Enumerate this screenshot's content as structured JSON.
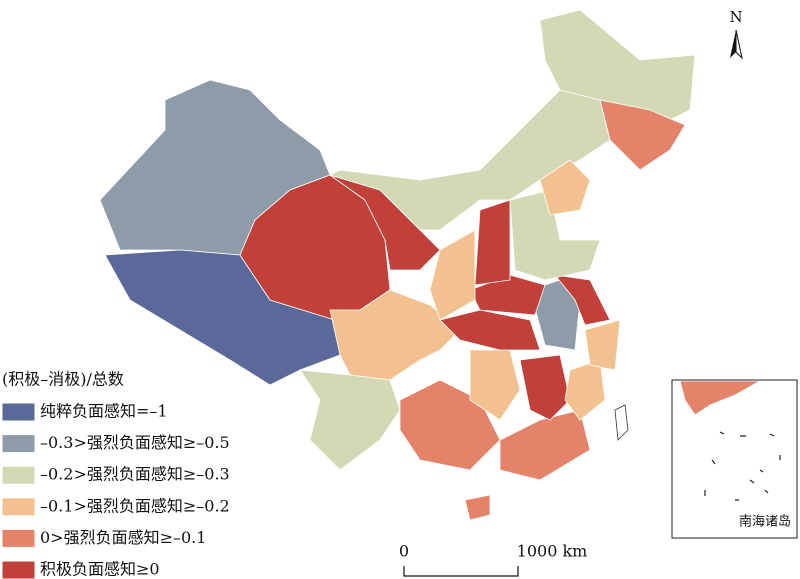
{
  "legend": {
    "title": "(积极–消极)/总数",
    "items": [
      {
        "label": "纯粹负面感知=–1",
        "color": "#5a6999"
      },
      {
        "label": "–0.3>强烈负面感知≥–0.5",
        "color": "#8e9ba8"
      },
      {
        "label": "–0.2>强烈负面感知≥–0.3",
        "color": "#d5d8b5"
      },
      {
        "label": "–0.1>强烈负面感知≥–0.2",
        "color": "#f2c18f"
      },
      {
        "label": "0>强烈负面感知≥–0.1",
        "color": "#e5826a"
      },
      {
        "label": "积极负面感知≥0",
        "color": "#c2403a"
      }
    ]
  },
  "scale_bar": {
    "start": "0",
    "end": "1000 km"
  },
  "north": "N",
  "inset_label": "南海诸岛"
}
